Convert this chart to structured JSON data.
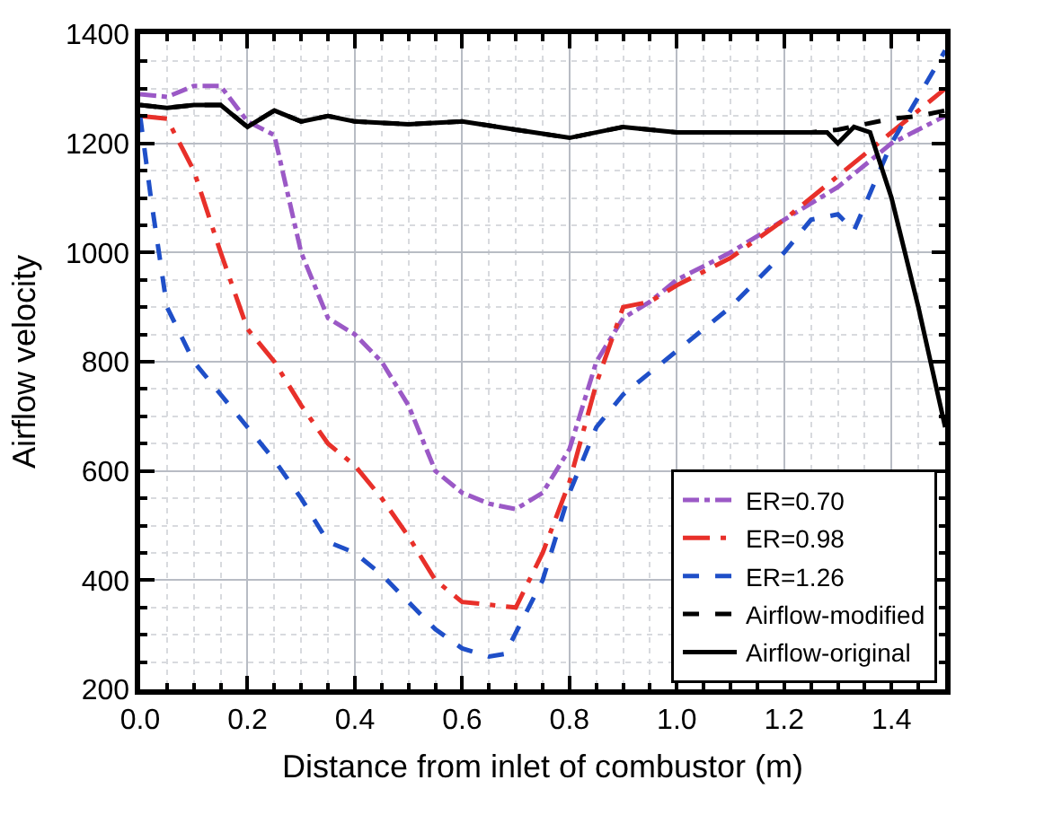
{
  "chart_data": {
    "type": "line",
    "xlabel": "Distance from inlet of combustor (m)",
    "ylabel": "Airflow velocity",
    "xlim": [
      0,
      1.5
    ],
    "ylim": [
      200,
      1400
    ],
    "xticks": [
      {
        "value": 0,
        "label": "0.0"
      },
      0.2,
      0.4,
      0.6,
      0.8,
      {
        "value": 1,
        "label": "1.0"
      },
      1.2,
      1.4
    ],
    "yticks": [
      200,
      400,
      600,
      800,
      1000,
      1200,
      1400
    ],
    "grid": true,
    "legend": "bottom right",
    "marker": "none",
    "series": [
      {
        "name": "ER=0.70",
        "color": "#9b59c6",
        "line_style": "dashdot",
        "x": [
          0,
          0.05,
          0.1,
          0.15,
          0.2,
          0.25,
          0.3,
          0.35,
          0.4,
          0.45,
          0.5,
          0.55,
          0.6,
          0.65,
          0.7,
          0.75,
          0.8,
          0.85,
          0.9,
          0.95,
          1.0,
          1.1,
          1.2,
          1.3,
          1.4,
          1.5
        ],
        "values": [
          1290,
          1285,
          1305,
          1305,
          1240,
          1215,
          1000,
          880,
          850,
          800,
          720,
          600,
          560,
          540,
          530,
          560,
          640,
          800,
          880,
          910,
          950,
          1000,
          1060,
          1120,
          1200,
          1250
        ]
      },
      {
        "name": "ER=0.98",
        "color": "#e8302a",
        "line_style": "longdashdot",
        "x": [
          0,
          0.05,
          0.1,
          0.15,
          0.2,
          0.25,
          0.3,
          0.35,
          0.4,
          0.45,
          0.5,
          0.55,
          0.6,
          0.65,
          0.7,
          0.75,
          0.8,
          0.85,
          0.9,
          0.95,
          1.0,
          1.1,
          1.2,
          1.3,
          1.4,
          1.5
        ],
        "values": [
          1250,
          1245,
          1150,
          1000,
          860,
          800,
          720,
          650,
          610,
          550,
          480,
          400,
          360,
          355,
          350,
          450,
          580,
          760,
          900,
          910,
          940,
          990,
          1060,
          1140,
          1220,
          1300
        ]
      },
      {
        "name": "ER=1.26",
        "color": "#1f4fc8",
        "line_style": "dashed",
        "x": [
          0,
          0.02,
          0.05,
          0.1,
          0.15,
          0.2,
          0.25,
          0.3,
          0.35,
          0.4,
          0.45,
          0.5,
          0.55,
          0.6,
          0.65,
          0.68,
          0.75,
          0.8,
          0.85,
          0.9,
          1.0,
          1.1,
          1.2,
          1.25,
          1.3,
          1.33,
          1.4,
          1.5
        ],
        "values": [
          1250,
          1100,
          900,
          800,
          740,
          680,
          620,
          550,
          470,
          450,
          410,
          360,
          310,
          275,
          260,
          265,
          400,
          560,
          680,
          740,
          820,
          900,
          1000,
          1060,
          1070,
          1040,
          1200,
          1370
        ]
      },
      {
        "name": "Airflow-modified",
        "color": "#000000",
        "line_style": "dashed",
        "x": [
          0,
          0.05,
          0.1,
          0.15,
          0.2,
          0.25,
          0.3,
          0.35,
          0.4,
          0.5,
          0.6,
          0.7,
          0.8,
          0.9,
          1.0,
          1.1,
          1.2,
          1.25,
          1.3,
          1.35,
          1.4,
          1.45,
          1.5
        ],
        "values": [
          1270,
          1265,
          1270,
          1270,
          1230,
          1260,
          1240,
          1250,
          1240,
          1235,
          1240,
          1225,
          1210,
          1230,
          1220,
          1220,
          1220,
          1220,
          1225,
          1235,
          1245,
          1250,
          1260
        ]
      },
      {
        "name": "Airflow-original",
        "color": "#000000",
        "line_style": "solid",
        "x": [
          0,
          0.05,
          0.1,
          0.15,
          0.2,
          0.25,
          0.3,
          0.35,
          0.4,
          0.5,
          0.6,
          0.7,
          0.8,
          0.9,
          1.0,
          1.1,
          1.2,
          1.28,
          1.3,
          1.33,
          1.36,
          1.4,
          1.45,
          1.5
        ],
        "values": [
          1270,
          1265,
          1270,
          1270,
          1230,
          1260,
          1240,
          1250,
          1240,
          1235,
          1240,
          1225,
          1210,
          1230,
          1220,
          1220,
          1220,
          1220,
          1200,
          1230,
          1220,
          1100,
          900,
          680
        ]
      }
    ]
  }
}
